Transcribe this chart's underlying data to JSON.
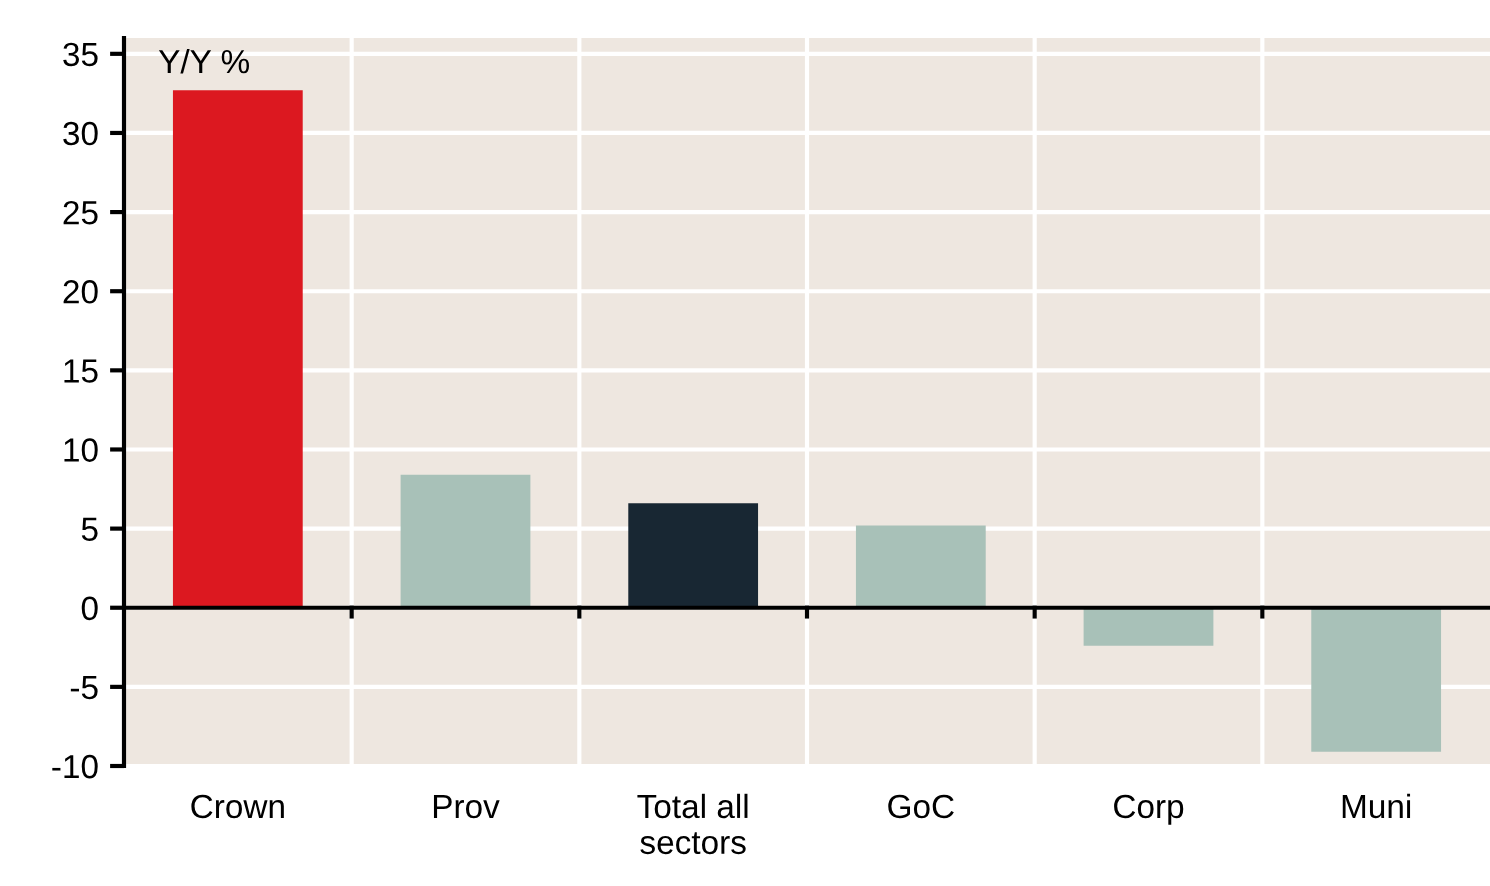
{
  "chart_data": {
    "type": "bar",
    "categories": [
      "Crown",
      "Prov",
      "Total all\nsectors",
      "GoC",
      "Corp",
      "Muni"
    ],
    "values": [
      32.7,
      8.4,
      6.6,
      5.2,
      -2.4,
      -9.1
    ],
    "colors": [
      "#dc1820",
      "#a8c1b8",
      "#182733",
      "#a8c1b8",
      "#a8c1b8",
      "#a8c1b8"
    ],
    "annotations": [
      "Y/Y %"
    ],
    "ylim": [
      -10,
      36
    ],
    "yticks": [
      -10,
      -5,
      0,
      5,
      10,
      15,
      20,
      25,
      30,
      35
    ],
    "grid": true
  }
}
